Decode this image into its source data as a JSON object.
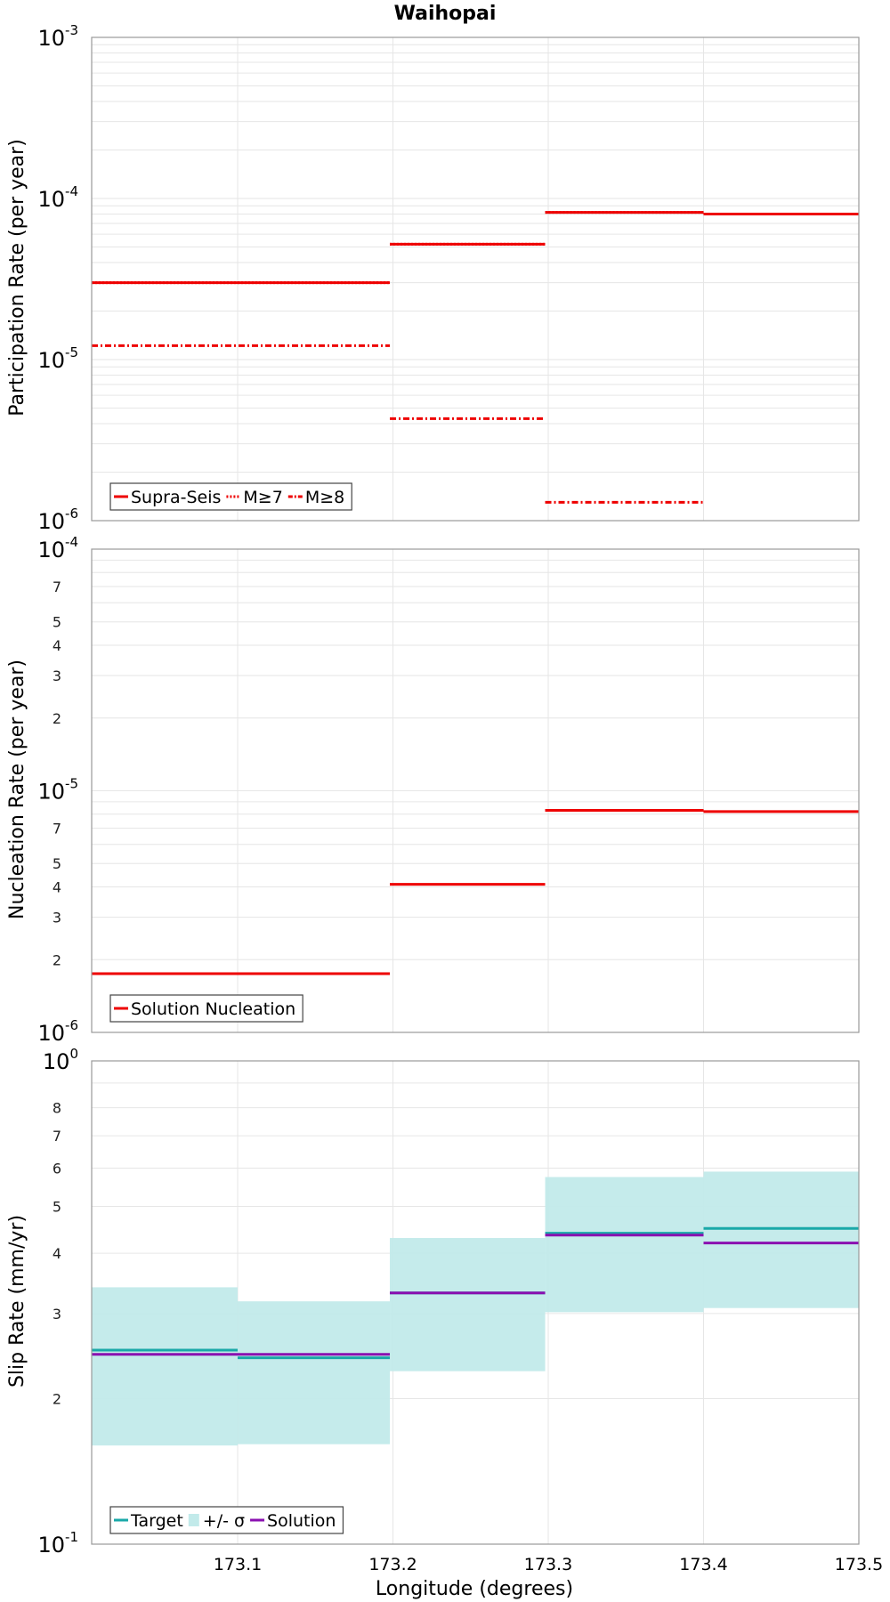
{
  "figure_title": "Waihopai",
  "colors": {
    "supra_seis": "#ee0000",
    "target": "#1aa8a8",
    "band": "#c2eaea",
    "solution": "#8a10b0",
    "grid": "#e6e6e6",
    "axis": "#999999"
  },
  "chart_data": [
    {
      "type": "line",
      "title": "Waihopai",
      "xlabel": "",
      "ylabel": "Participation Rate (per year)",
      "yscale": "log",
      "ylim": [
        1e-06,
        0.001
      ],
      "xlim": [
        173.006,
        173.5
      ],
      "grid": true,
      "legend_position": "bottom-left",
      "yticks": [
        {
          "base": "10",
          "exp": "-6",
          "value": 1e-06
        },
        {
          "base": "10",
          "exp": "-5",
          "value": 1e-05
        },
        {
          "base": "10",
          "exp": "-4",
          "value": 0.0001
        },
        {
          "base": "10",
          "exp": "-3",
          "value": 0.001
        }
      ],
      "series": [
        {
          "name": "Supra-Seis",
          "style": "solid",
          "segments": [
            {
              "x0": 173.006,
              "x1": 173.198,
              "y": 3e-05
            },
            {
              "x0": 173.198,
              "x1": 173.298,
              "y": 5.2e-05
            },
            {
              "x0": 173.298,
              "x1": 173.4,
              "y": 8.2e-05
            },
            {
              "x0": 173.4,
              "x1": 173.5,
              "y": 8e-05
            }
          ]
        },
        {
          "name": "M≥7",
          "style": "dotted",
          "segments": [
            {
              "x0": 173.006,
              "x1": 173.198,
              "y": 3e-05
            },
            {
              "x0": 173.198,
              "x1": 173.298,
              "y": 5.2e-05
            },
            {
              "x0": 173.298,
              "x1": 173.4,
              "y": 8.2e-05
            },
            {
              "x0": 173.4,
              "x1": 173.5,
              "y": 8e-05
            }
          ]
        },
        {
          "name": "M≥8",
          "style": "dashdot",
          "segments": [
            {
              "x0": 173.006,
              "x1": 173.198,
              "y": 1.22e-05
            },
            {
              "x0": 173.198,
              "x1": 173.298,
              "y": 4.3e-06
            },
            {
              "x0": 173.298,
              "x1": 173.4,
              "y": 1.3e-06
            }
          ]
        }
      ]
    },
    {
      "type": "line",
      "xlabel": "",
      "ylabel": "Nucleation Rate (per year)",
      "yscale": "log",
      "ylim": [
        1e-06,
        0.0001
      ],
      "xlim": [
        173.006,
        173.5
      ],
      "grid": true,
      "legend_position": "bottom-left",
      "yticks": [
        {
          "base": "10",
          "exp": "-6",
          "value": 1e-06
        },
        {
          "base": "10",
          "exp": "-5",
          "value": 1e-05
        },
        {
          "base": "10",
          "exp": "-4",
          "value": 0.0001
        }
      ],
      "minor_ticks": [
        {
          "label": "2",
          "value": 2e-06
        },
        {
          "label": "3",
          "value": 3e-06
        },
        {
          "label": "4",
          "value": 4e-06
        },
        {
          "label": "5",
          "value": 5e-06
        },
        {
          "label": "7",
          "value": 7e-06
        },
        {
          "label": "2",
          "value": 2e-05
        },
        {
          "label": "3",
          "value": 3e-05
        },
        {
          "label": "4",
          "value": 4e-05
        },
        {
          "label": "5",
          "value": 5e-05
        },
        {
          "label": "7",
          "value": 7e-05
        }
      ],
      "series": [
        {
          "name": "Solution Nucleation",
          "style": "solid",
          "segments": [
            {
              "x0": 173.006,
              "x1": 173.198,
              "y": 1.75e-06
            },
            {
              "x0": 173.198,
              "x1": 173.298,
              "y": 4.1e-06
            },
            {
              "x0": 173.298,
              "x1": 173.4,
              "y": 8.3e-06
            },
            {
              "x0": 173.4,
              "x1": 173.5,
              "y": 8.2e-06
            }
          ]
        }
      ]
    },
    {
      "type": "line",
      "xlabel": "Longitude (degrees)",
      "ylabel": "Slip Rate (mm/yr)",
      "yscale": "log",
      "ylim": [
        0.1,
        1.0
      ],
      "xlim": [
        173.006,
        173.5
      ],
      "grid": true,
      "legend_position": "bottom-left",
      "xticks": [
        "173.1",
        "173.2",
        "173.3",
        "173.4",
        "173.5"
      ],
      "xtick_values": [
        173.1,
        173.2,
        173.3,
        173.4,
        173.5
      ],
      "yticks": [
        {
          "base": "10",
          "exp": "-1",
          "value": 0.1
        },
        {
          "base": "10",
          "exp": "0",
          "value": 1.0
        }
      ],
      "minor_ticks": [
        {
          "label": "2",
          "value": 0.2
        },
        {
          "label": "3",
          "value": 0.3
        },
        {
          "label": "4",
          "value": 0.4
        },
        {
          "label": "5",
          "value": 0.5
        },
        {
          "label": "6",
          "value": 0.6
        },
        {
          "label": "7",
          "value": 0.7
        },
        {
          "label": "8",
          "value": 0.8
        }
      ],
      "band": {
        "name": "+/- σ",
        "segments": [
          {
            "x0": 173.006,
            "x1": 173.1,
            "low": 0.16,
            "high": 0.34
          },
          {
            "x0": 173.1,
            "x1": 173.198,
            "low": 0.161,
            "high": 0.318
          },
          {
            "x0": 173.198,
            "x1": 173.298,
            "low": 0.228,
            "high": 0.43
          },
          {
            "x0": 173.298,
            "x1": 173.4,
            "low": 0.302,
            "high": 0.575
          },
          {
            "x0": 173.4,
            "x1": 173.5,
            "low": 0.308,
            "high": 0.59
          }
        ]
      },
      "series": [
        {
          "name": "Target",
          "style": "solid",
          "segments": [
            {
              "x0": 173.006,
              "x1": 173.1,
              "y": 0.252
            },
            {
              "x0": 173.1,
              "x1": 173.198,
              "y": 0.243
            },
            {
              "x0": 173.198,
              "x1": 173.298,
              "y": 0.331
            },
            {
              "x0": 173.298,
              "x1": 173.4,
              "y": 0.44
            },
            {
              "x0": 173.4,
              "x1": 173.5,
              "y": 0.45
            }
          ]
        },
        {
          "name": "Solution",
          "style": "solid",
          "segments": [
            {
              "x0": 173.006,
              "x1": 173.198,
              "y": 0.247
            },
            {
              "x0": 173.198,
              "x1": 173.298,
              "y": 0.331
            },
            {
              "x0": 173.298,
              "x1": 173.4,
              "y": 0.436
            },
            {
              "x0": 173.4,
              "x1": 173.5,
              "y": 0.42
            }
          ]
        }
      ]
    }
  ]
}
